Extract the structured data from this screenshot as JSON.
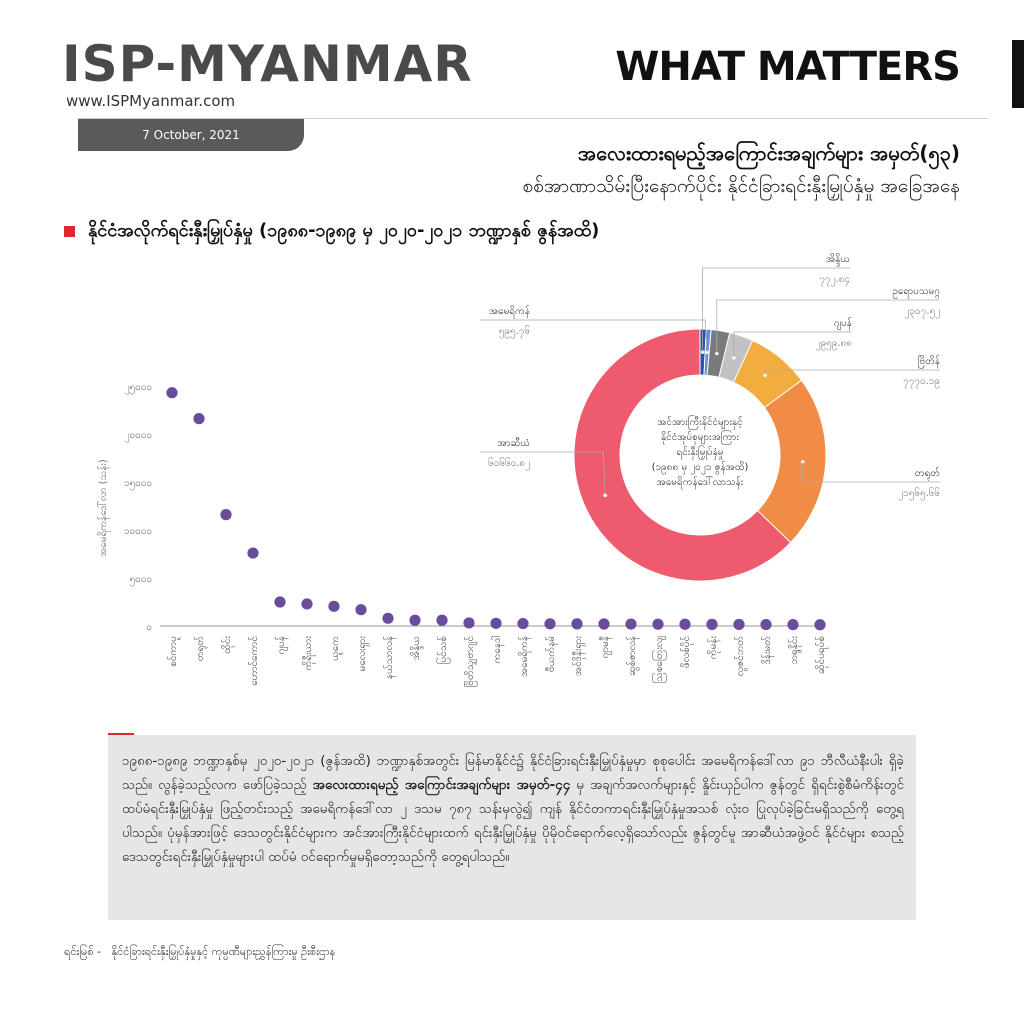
{
  "header": {
    "brand": "ISP-MYANMAR",
    "website": "www.ISPMyanmar.com",
    "date": "7 October, 2021",
    "tagline": "WHAT MATTERS",
    "heading1": "အလေးထားရမည့်အကြောင်းအချက်များ အမှတ်(၅၃)",
    "heading2": "စစ်အာဏာသိမ်းပြီးနောက်ပိုင်း နိုင်ငံခြားရင်းနှီးမြှုပ်နှံမှု အခြေအနေ"
  },
  "section_title": "နိုင်ငံအလိုက်ရင်းနှီးမြှုပ်နှံမှု (၁၉၈၈-၁၉၈၉ မှ ၂၀၂၀-၂၀၂၁ ဘဏ္ဍာနှစ် ဇွန်အထိ)",
  "colors": {
    "accent_red": "#e0262e",
    "scatter_purple": "#6a4c9c",
    "asia": "#ee5a6e",
    "europe": "#f08c45",
    "america": "#f2ad3e",
    "ocean": "#c2c2c2",
    "africa": "#7a7a7a",
    "australia": "#3b6cc7"
  },
  "chart_data": [
    {
      "type": "scatter",
      "ylabel": "အမေရိကန်ဒေါ်လာ (သန်း)",
      "ylim": [
        0,
        25000
      ],
      "yticks": [
        {
          "value": 0,
          "label": "၀"
        },
        {
          "value": 5000,
          "label": "၅၀၀၀"
        },
        {
          "value": 10000,
          "label": "၁၀၀၀၀"
        },
        {
          "value": 15000,
          "label": "၁၅၀၀၀"
        },
        {
          "value": 20000,
          "label": "၂၀၀၀၀"
        },
        {
          "value": 25000,
          "label": "၂၅၀၀၀"
        }
      ],
      "categories": [
        "စင်ကာပူ",
        "တရုတ်",
        "ထိုင်း",
        "ဟောင်ကောင်",
        "ဂျပန်",
        "ကိုရီးယား",
        "ယူကေ",
        "မလေးရှား",
        "နယ်သာလန်",
        "အိန္ဒိယ",
        "ပြင်သစ်",
        "ဗြိတိသျှဗာဂျင်",
        "ကနေဒါ",
        "အမေရိကန်",
        "ဗီယက်နမ်",
        "အင်ဒိုနီးရှား",
        "ဂျာမနီ",
        "ဆွစ်ဇာလန်",
        "ဩစတြေးလျ",
        "ဖိလစ်ပိုင်",
        "ကိုမန်း",
        "လူဇင်ဘတ်",
        "ဒိန်းမတ်",
        "ဘရူနိုင်း",
        "ဆိုင်ပရပ်စ်"
      ],
      "values": [
        24300,
        21600,
        11600,
        7600,
        2500,
        2300,
        2050,
        1700,
        800,
        600,
        600,
        320,
        280,
        250,
        230,
        220,
        210,
        200,
        190,
        180,
        170,
        160,
        150,
        140,
        130
      ]
    },
    {
      "type": "pie",
      "center_label": [
        "အင်အားကြီးနိုင်ငံများနှင့်",
        "နိုင်ငံအုပ်စုများအကြား",
        "ရင်းနှီးမြှုပ်နှံမှု",
        "(၁၉၈၈ မှ ၂၀၂၁ ဇွန်အထိ)",
        "အမေရိကန်ဒေါ်လာသန်း"
      ],
      "slices": [
        {
          "name": "အာဆီယံ",
          "value": 60660.82,
          "label": "၆၀၆၆၀.၈၂",
          "color": "#ee5a6e"
        },
        {
          "name": "တရုတ်",
          "value": 21565.66,
          "label": "၂၁၅၆၅.၆၆",
          "color": "#f08c45"
        },
        {
          "name": "ဗြိတိန်",
          "value": 7770.19,
          "label": "၇၇၇၀.၁၉",
          "color": "#f2ad3e"
        },
        {
          "name": "ဂျပန်",
          "value": 2959.88,
          "label": "၂၉၅၉.၈၈",
          "color": "#c2c2c2"
        },
        {
          "name": "ဥရောပသမဂ္ဂ",
          "value": 2307.52,
          "label": "၂၃၀၇.၅၂",
          "color": "#7a7a7a"
        },
        {
          "name": "အိန္ဒိယ",
          "value": 772.84,
          "label": "၇၇၂.၈၄",
          "color": "#2a52a8"
        },
        {
          "name": "အမေရိကန်",
          "value": 595.76,
          "label": "၅၉၅.၇၆",
          "color": "#5b8fe0"
        }
      ]
    }
  ],
  "paragraph": {
    "part1": "၁၉၈၈-၁၉၈၉ ဘဏ္ဍာနှစ်မှ ၂၀၂၀-၂၀၂၁ (ဇွန်အထိ) ဘဏ္ဍာနှစ်အတွင်း မြန်မာနိုင်ငံ၌ နိုင်ငံခြားရင်းနှီးမြှုပ်နှံမှုမှာ စုစုပေါင်း အမေရိကန်ဒေါ်လာ ၉၁ ဘီလီယံနီးပါး ရှိခဲ့သည်။ လွန်ခဲ့သည့်လက ဖော်ပြခဲ့သည့် ",
    "bold1": "အလေးထားရမည့် အကြောင်းအချက်များ အမှတ်-၄၄",
    "part2": " မှ အချက်အလက်များနှင့် နှိုင်းယှဉ်ပါက ဇွန်တွင် ရှိရင်းစွဲစီမံကိန်းတွင် ထပ်မံရင်းနှီးမြှုပ်နှံမှု ဖြည့်တင်းသည့် အမေရိကန်ဒေါ်လာ ၂ ဒသမ ၇၈၇ သန်းမှလွဲ၍ ကျန် နိုင်ငံတကာရင်းနှီးမြှုပ်နှံမှုအသစ် လုံးဝ ပြုလုပ်ခဲ့ခြင်းမရှိသည်ကို တွေ့ရပါသည်။ ပုံမှန်အားဖြင့် ဒေသတွင်းနိုင်ငံများက အင်အားကြီးနိုင်ငံများထက် ရင်းနှီးမြှုပ်နှံမှု ပိုမိုဝင်ရောက်လေ့ရှိသော်လည်း ဇွန်တွင်မူ အာဆီယံအဖွဲ့ဝင် နိုင်ငံများ စသည့် ဒေသတွင်းရင်းနှီးမြှုပ်နှံမှုများပါ ထပ်မံ ဝင်ရောက်မှုမရှိတော့သည်ကို တွေ့ရပါသည်။"
  },
  "source": {
    "label": "ရင်းမြစ် -",
    "text": "နိုင်ငံခြားရင်းနှီးမြှုပ်နှံမှုနှင့် ကုမ္ပဏီများညွှန်ကြားမှု ဦးစီးဌာန"
  }
}
